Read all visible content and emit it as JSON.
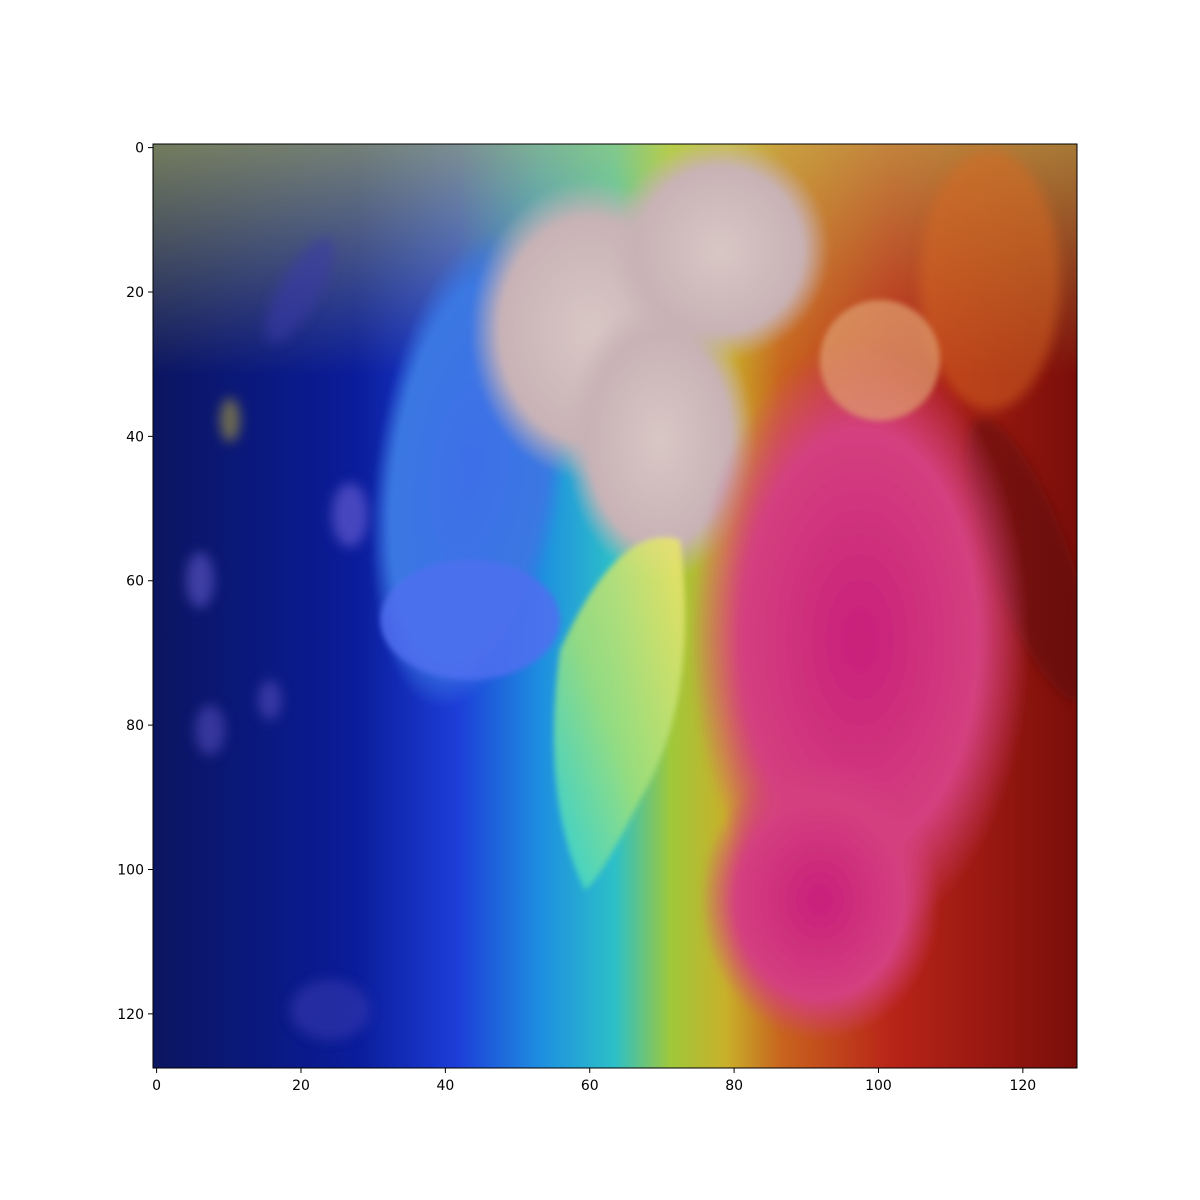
{
  "figure": {
    "background": "#ffffff",
    "image": {
      "subject": "flower",
      "description_colors": {
        "left": "#0a1a7a",
        "center": "#2b7fd6",
        "petal_pink": "#d23a86",
        "right": "#b8401a",
        "top_band": "#8fbf3a"
      },
      "size": [
        128,
        128
      ]
    },
    "axes": {
      "xlim": [
        -0.5,
        127.5
      ],
      "ylim": [
        127.5,
        -0.5
      ],
      "x_ticks": [
        0,
        20,
        40,
        60,
        80,
        100,
        120
      ],
      "y_ticks": [
        0,
        20,
        40,
        60,
        80,
        100,
        120
      ],
      "x_tick_labels": [
        "0",
        "20",
        "40",
        "60",
        "80",
        "100",
        "120"
      ],
      "y_tick_labels": [
        "0",
        "20",
        "40",
        "60",
        "80",
        "100",
        "120"
      ]
    }
  }
}
